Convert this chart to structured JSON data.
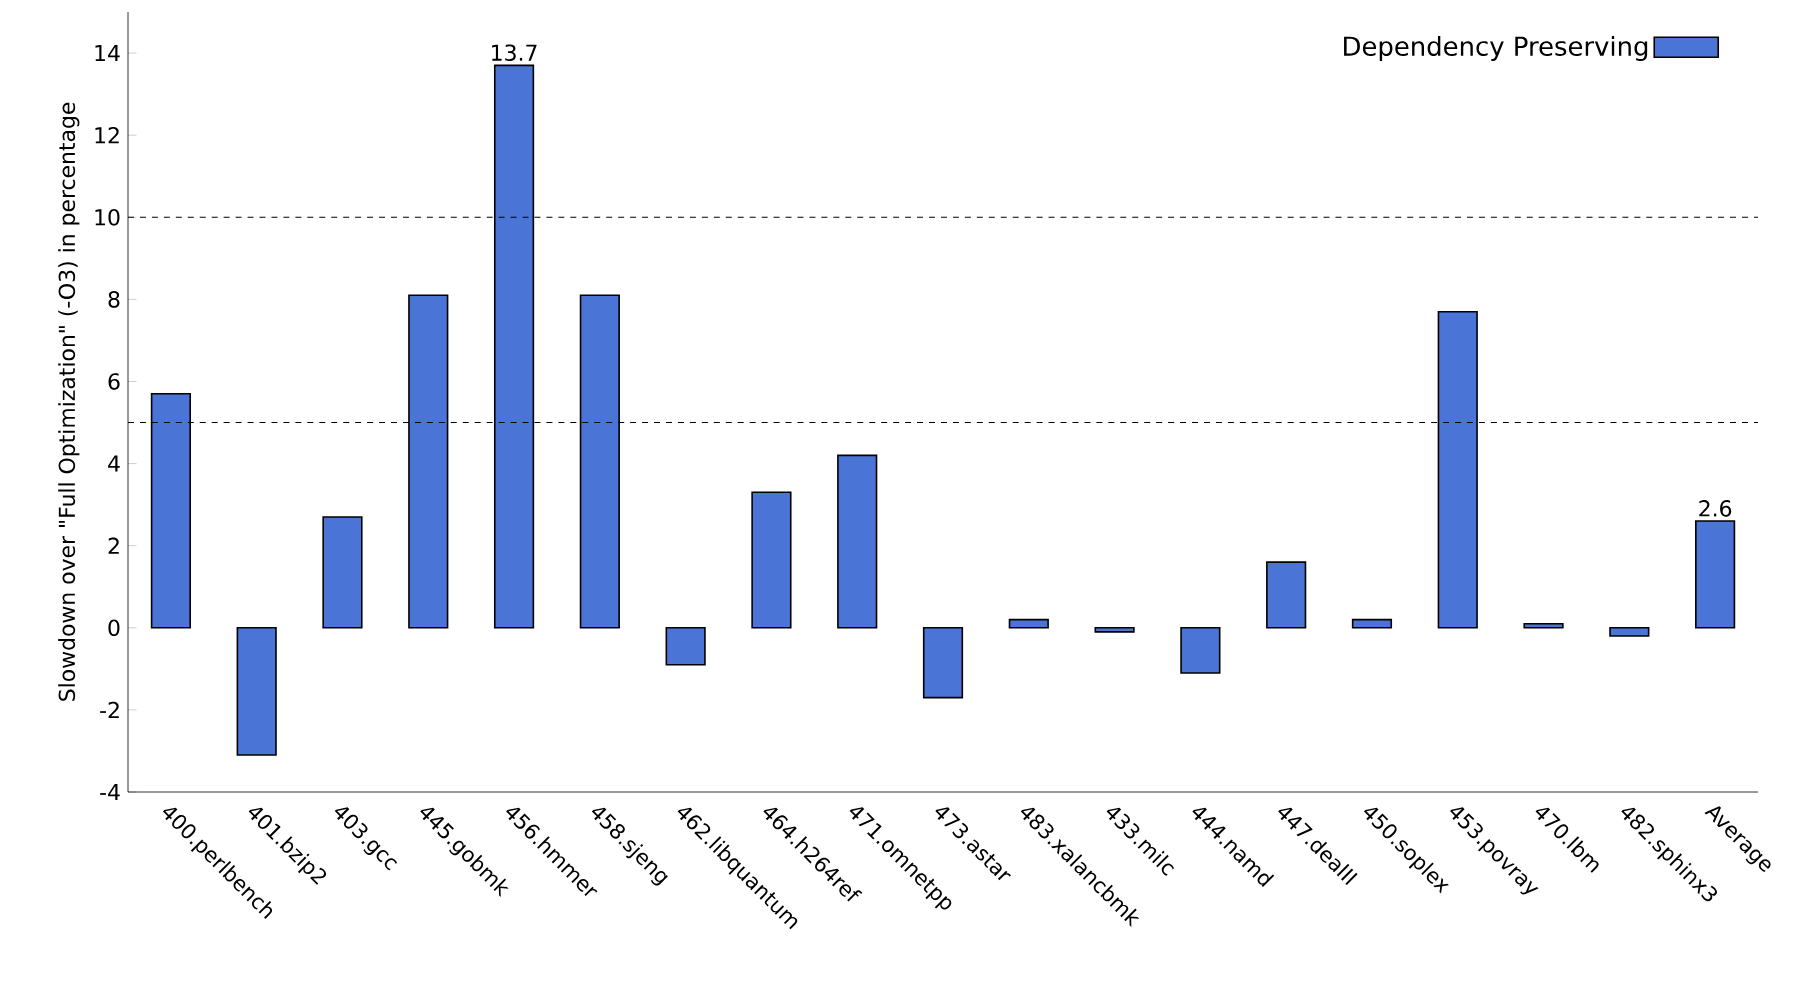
{
  "chart_data": {
    "type": "bar",
    "ylabel": "Slowdown over \"Full Optimization\" (-O3) in percentage",
    "categories": [
      "400.perlbench",
      "401.bzip2",
      "403.gcc",
      "445.gobmk",
      "456.hmmer",
      "458.sjeng",
      "462.libquantum",
      "464.h264ref",
      "471.omnetpp",
      "473.astar",
      "483.xalancbmk",
      "433.milc",
      "444.namd",
      "447.dealII",
      "450.soplex",
      "453.povray",
      "470.lbm",
      "482.sphinx3",
      "Average"
    ],
    "series": [
      {
        "name": "Dependency Preserving",
        "color": "#4a74d6",
        "values": [
          5.7,
          -3.1,
          2.7,
          8.1,
          13.7,
          8.1,
          -0.9,
          3.3,
          4.2,
          -1.7,
          0.2,
          -0.1,
          -1.1,
          1.6,
          0.2,
          7.7,
          0.1,
          -0.2,
          2.6
        ],
        "value_labels": [
          null,
          null,
          null,
          null,
          "13.7",
          null,
          null,
          null,
          null,
          null,
          null,
          null,
          null,
          null,
          null,
          null,
          null,
          null,
          "2.6"
        ]
      }
    ],
    "ylim": [
      -4,
      15
    ],
    "yticks": [
      -4,
      -2,
      0,
      2,
      4,
      6,
      8,
      10,
      12,
      14
    ],
    "ref_lines": [
      {
        "axis": "y",
        "value": 5,
        "line_style": "dashed"
      },
      {
        "axis": "y",
        "value": 10,
        "line_style": "dashed"
      }
    ],
    "legend": "top right"
  }
}
